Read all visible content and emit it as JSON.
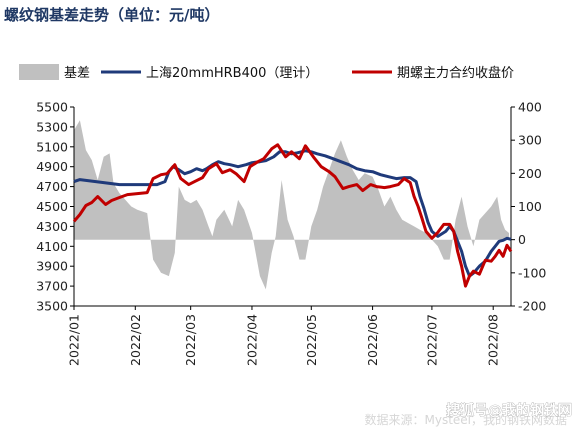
{
  "chart_data": {
    "type": "line",
    "title": "螺纹钢基差走势（单位：元/吨）",
    "left_axis": {
      "ylim": [
        3500,
        5500
      ],
      "ticks": [
        3500,
        3700,
        3900,
        4100,
        4300,
        4500,
        4700,
        4900,
        5100,
        5300,
        5500
      ]
    },
    "right_axis": {
      "ylim": [
        -200,
        400
      ],
      "ticks": [
        -200,
        -100,
        0,
        100,
        200,
        300,
        400
      ]
    },
    "x_axis": {
      "range": [
        "2022-01-01",
        "2022-08-10"
      ],
      "tick_labels": [
        "2022/01",
        "2022/02",
        "2022/03",
        "2022/04",
        "2022/05",
        "2022/06",
        "2022/07",
        "2022/08"
      ],
      "tick_dates": [
        "2022-01-01",
        "2022-02-01",
        "2022-03-01",
        "2022-04-01",
        "2022-05-01",
        "2022-06-01",
        "2022-07-01",
        "2022-08-01"
      ]
    },
    "legend_position": "top",
    "grid": false,
    "series": [
      {
        "name": "基差",
        "kind": "area",
        "axis": "right",
        "color": "#c0c0c0",
        "points": [
          [
            "2022-01-01",
            330
          ],
          [
            "2022-01-04",
            360
          ],
          [
            "2022-01-07",
            270
          ],
          [
            "2022-01-10",
            240
          ],
          [
            "2022-01-13",
            180
          ],
          [
            "2022-01-16",
            250
          ],
          [
            "2022-01-19",
            260
          ],
          [
            "2022-01-21",
            170
          ],
          [
            "2022-01-24",
            140
          ],
          [
            "2022-01-27",
            120
          ],
          [
            "2022-01-30",
            100
          ],
          [
            "2022-02-02",
            90
          ],
          [
            "2022-02-07",
            80
          ],
          [
            "2022-02-10",
            -60
          ],
          [
            "2022-02-14",
            -100
          ],
          [
            "2022-02-18",
            -110
          ],
          [
            "2022-02-21",
            -40
          ],
          [
            "2022-02-23",
            160
          ],
          [
            "2022-02-26",
            120
          ],
          [
            "2022-03-01",
            110
          ],
          [
            "2022-03-04",
            120
          ],
          [
            "2022-03-07",
            90
          ],
          [
            "2022-03-10",
            40
          ],
          [
            "2022-03-12",
            10
          ],
          [
            "2022-03-14",
            60
          ],
          [
            "2022-03-18",
            90
          ],
          [
            "2022-03-22",
            40
          ],
          [
            "2022-03-25",
            120
          ],
          [
            "2022-03-28",
            90
          ],
          [
            "2022-04-01",
            20
          ],
          [
            "2022-04-05",
            -110
          ],
          [
            "2022-04-08",
            -150
          ],
          [
            "2022-04-11",
            -40
          ],
          [
            "2022-04-13",
            10
          ],
          [
            "2022-04-16",
            180
          ],
          [
            "2022-04-19",
            60
          ],
          [
            "2022-04-22",
            10
          ],
          [
            "2022-04-25",
            -60
          ],
          [
            "2022-04-28",
            -60
          ],
          [
            "2022-05-01",
            40
          ],
          [
            "2022-05-04",
            90
          ],
          [
            "2022-05-07",
            160
          ],
          [
            "2022-05-10",
            210
          ],
          [
            "2022-05-13",
            260
          ],
          [
            "2022-05-16",
            300
          ],
          [
            "2022-05-19",
            250
          ],
          [
            "2022-05-22",
            210
          ],
          [
            "2022-05-25",
            180
          ],
          [
            "2022-05-28",
            200
          ],
          [
            "2022-06-01",
            190
          ],
          [
            "2022-06-04",
            150
          ],
          [
            "2022-06-07",
            100
          ],
          [
            "2022-06-10",
            130
          ],
          [
            "2022-06-13",
            90
          ],
          [
            "2022-06-16",
            60
          ],
          [
            "2022-06-19",
            50
          ],
          [
            "2022-06-22",
            40
          ],
          [
            "2022-06-25",
            30
          ],
          [
            "2022-06-28",
            20
          ],
          [
            "2022-07-01",
            0
          ],
          [
            "2022-07-04",
            -20
          ],
          [
            "2022-07-07",
            -60
          ],
          [
            "2022-07-10",
            -60
          ],
          [
            "2022-07-13",
            60
          ],
          [
            "2022-07-16",
            130
          ],
          [
            "2022-07-19",
            40
          ],
          [
            "2022-07-22",
            -20
          ],
          [
            "2022-07-25",
            60
          ],
          [
            "2022-07-28",
            80
          ],
          [
            "2022-07-31",
            100
          ],
          [
            "2022-08-03",
            130
          ],
          [
            "2022-08-05",
            60
          ],
          [
            "2022-08-07",
            30
          ],
          [
            "2022-08-09",
            20
          ]
        ]
      },
      {
        "name": "上海20mmHRB400（理计）",
        "kind": "line",
        "axis": "left",
        "color": "#1f3a7a",
        "points": [
          [
            "2022-01-01",
            4750
          ],
          [
            "2022-01-04",
            4770
          ],
          [
            "2022-01-08",
            4760
          ],
          [
            "2022-01-12",
            4750
          ],
          [
            "2022-01-16",
            4740
          ],
          [
            "2022-01-20",
            4730
          ],
          [
            "2022-01-24",
            4720
          ],
          [
            "2022-02-01",
            4720
          ],
          [
            "2022-02-07",
            4720
          ],
          [
            "2022-02-12",
            4720
          ],
          [
            "2022-02-16",
            4750
          ],
          [
            "2022-02-18",
            4850
          ],
          [
            "2022-02-20",
            4900
          ],
          [
            "2022-02-23",
            4870
          ],
          [
            "2022-02-26",
            4830
          ],
          [
            "2022-03-01",
            4850
          ],
          [
            "2022-03-04",
            4880
          ],
          [
            "2022-03-07",
            4860
          ],
          [
            "2022-03-09",
            4880
          ],
          [
            "2022-03-12",
            4920
          ],
          [
            "2022-03-15",
            4950
          ],
          [
            "2022-03-18",
            4930
          ],
          [
            "2022-03-21",
            4920
          ],
          [
            "2022-03-25",
            4900
          ],
          [
            "2022-03-29",
            4920
          ],
          [
            "2022-04-01",
            4940
          ],
          [
            "2022-04-05",
            4950
          ],
          [
            "2022-04-08",
            4960
          ],
          [
            "2022-04-12",
            5000
          ],
          [
            "2022-04-15",
            5050
          ],
          [
            "2022-04-18",
            5050
          ],
          [
            "2022-04-21",
            5030
          ],
          [
            "2022-04-24",
            5040
          ],
          [
            "2022-04-28",
            5060
          ],
          [
            "2022-05-01",
            5050
          ],
          [
            "2022-05-04",
            5030
          ],
          [
            "2022-05-08",
            5010
          ],
          [
            "2022-05-12",
            4980
          ],
          [
            "2022-05-16",
            4950
          ],
          [
            "2022-05-20",
            4920
          ],
          [
            "2022-05-24",
            4880
          ],
          [
            "2022-05-28",
            4860
          ],
          [
            "2022-06-01",
            4850
          ],
          [
            "2022-06-05",
            4820
          ],
          [
            "2022-06-09",
            4800
          ],
          [
            "2022-06-13",
            4780
          ],
          [
            "2022-06-17",
            4790
          ],
          [
            "2022-06-20",
            4790
          ],
          [
            "2022-06-23",
            4750
          ],
          [
            "2022-06-25",
            4600
          ],
          [
            "2022-06-27",
            4480
          ],
          [
            "2022-06-29",
            4340
          ],
          [
            "2022-07-01",
            4250
          ],
          [
            "2022-07-04",
            4200
          ],
          [
            "2022-07-08",
            4250
          ],
          [
            "2022-07-10",
            4300
          ],
          [
            "2022-07-12",
            4250
          ],
          [
            "2022-07-14",
            4150
          ],
          [
            "2022-07-16",
            4050
          ],
          [
            "2022-07-18",
            3900
          ],
          [
            "2022-07-20",
            3800
          ],
          [
            "2022-07-22",
            3830
          ],
          [
            "2022-07-25",
            3900
          ],
          [
            "2022-07-28",
            3950
          ],
          [
            "2022-07-31",
            4050
          ],
          [
            "2022-08-02",
            4100
          ],
          [
            "2022-08-04",
            4150
          ],
          [
            "2022-08-06",
            4160
          ],
          [
            "2022-08-08",
            4180
          ],
          [
            "2022-08-10",
            4170
          ]
        ]
      },
      {
        "name": "期螺主力合约收盘价",
        "kind": "line",
        "axis": "left",
        "color": "#c00000",
        "points": [
          [
            "2022-01-01",
            4350
          ],
          [
            "2022-01-04",
            4420
          ],
          [
            "2022-01-07",
            4510
          ],
          [
            "2022-01-10",
            4540
          ],
          [
            "2022-01-13",
            4600
          ],
          [
            "2022-01-17",
            4520
          ],
          [
            "2022-01-20",
            4560
          ],
          [
            "2022-01-24",
            4590
          ],
          [
            "2022-01-28",
            4620
          ],
          [
            "2022-02-07",
            4640
          ],
          [
            "2022-02-10",
            4780
          ],
          [
            "2022-02-14",
            4820
          ],
          [
            "2022-02-17",
            4830
          ],
          [
            "2022-02-21",
            4920
          ],
          [
            "2022-02-24",
            4780
          ],
          [
            "2022-02-28",
            4720
          ],
          [
            "2022-03-03",
            4750
          ],
          [
            "2022-03-07",
            4790
          ],
          [
            "2022-03-10",
            4880
          ],
          [
            "2022-03-14",
            4930
          ],
          [
            "2022-03-17",
            4840
          ],
          [
            "2022-03-21",
            4870
          ],
          [
            "2022-03-24",
            4830
          ],
          [
            "2022-03-28",
            4750
          ],
          [
            "2022-03-31",
            4900
          ],
          [
            "2022-04-04",
            4950
          ],
          [
            "2022-04-07",
            4980
          ],
          [
            "2022-04-11",
            5080
          ],
          [
            "2022-04-14",
            5120
          ],
          [
            "2022-04-18",
            5000
          ],
          [
            "2022-04-21",
            5050
          ],
          [
            "2022-04-25",
            4980
          ],
          [
            "2022-04-28",
            5110
          ],
          [
            "2022-05-02",
            5000
          ],
          [
            "2022-05-06",
            4900
          ],
          [
            "2022-05-10",
            4850
          ],
          [
            "2022-05-13",
            4800
          ],
          [
            "2022-05-17",
            4680
          ],
          [
            "2022-05-20",
            4700
          ],
          [
            "2022-05-24",
            4720
          ],
          [
            "2022-05-27",
            4660
          ],
          [
            "2022-05-31",
            4720
          ],
          [
            "2022-06-03",
            4700
          ],
          [
            "2022-06-07",
            4690
          ],
          [
            "2022-06-10",
            4700
          ],
          [
            "2022-06-14",
            4720
          ],
          [
            "2022-06-17",
            4780
          ],
          [
            "2022-06-20",
            4740
          ],
          [
            "2022-06-22",
            4600
          ],
          [
            "2022-06-24",
            4500
          ],
          [
            "2022-06-26",
            4380
          ],
          [
            "2022-06-28",
            4250
          ],
          [
            "2022-07-01",
            4180
          ],
          [
            "2022-07-04",
            4240
          ],
          [
            "2022-07-07",
            4320
          ],
          [
            "2022-07-10",
            4320
          ],
          [
            "2022-07-12",
            4250
          ],
          [
            "2022-07-14",
            4050
          ],
          [
            "2022-07-16",
            3900
          ],
          [
            "2022-07-18",
            3700
          ],
          [
            "2022-07-20",
            3800
          ],
          [
            "2022-07-22",
            3850
          ],
          [
            "2022-07-25",
            3820
          ],
          [
            "2022-07-28",
            3960
          ],
          [
            "2022-07-31",
            3950
          ],
          [
            "2022-08-02",
            4000
          ],
          [
            "2022-08-04",
            4060
          ],
          [
            "2022-08-06",
            4000
          ],
          [
            "2022-08-08",
            4110
          ],
          [
            "2022-08-10",
            4050
          ]
        ]
      }
    ]
  },
  "watermark": {
    "main": "搜狐号@我的钢铁网",
    "faint": "数据来源：Mysteel，我的钢铁网数据"
  }
}
